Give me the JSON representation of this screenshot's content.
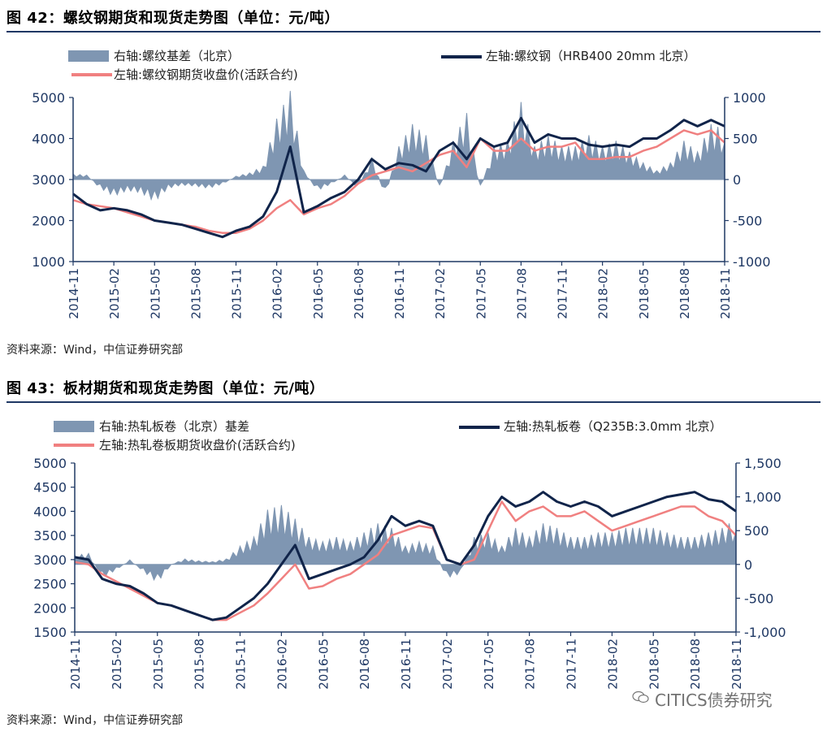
{
  "charts": [
    {
      "title": "图 42：螺纹钢期货和现货走势图（单位：元/吨）",
      "source": "资料来源：Wind，中信证券研究部"
    },
    {
      "title": "图 43：板材期货和现货走势图（单位：元/吨）",
      "source": "资料来源：Wind，中信证券研究部"
    }
  ],
  "watermark": "CITICS债券研究",
  "colors": {
    "basis": "#7f96b2",
    "spot": "#10244a",
    "futures": "#f08080",
    "axis": "#1f3864",
    "tick_text": "#1f3864"
  },
  "chart_data": [
    {
      "type": "line",
      "title": "",
      "x_ticks": [
        "2014-11",
        "2015-02",
        "2015-05",
        "2015-08",
        "2015-11",
        "2016-02",
        "2016-05",
        "2016-08",
        "2016-11",
        "2017-02",
        "2017-05",
        "2017-08",
        "2017-11",
        "2018-02",
        "2018-05",
        "2018-08",
        "2018-11"
      ],
      "ylim_left": [
        1000,
        5000
      ],
      "yticks_left": [
        "1000",
        "2000",
        "3000",
        "4000",
        "5000"
      ],
      "ylim_right": [
        -1000,
        1000
      ],
      "yticks_right": [
        "-1000",
        "-500",
        "0",
        "500",
        "1000"
      ],
      "legend": {
        "basis": "右轴:螺纹基差（北京）",
        "spot": "左轴:螺纹钢（HRB400 20mm 北京）",
        "futures": "左轴:螺纹钢期货收盘价(活跃合约)"
      },
      "series": [
        {
          "name": "左轴:螺纹钢（HRB400 20mm 北京）",
          "axis": "left",
          "x": [
            0,
            1,
            2,
            3,
            4,
            5,
            6,
            7,
            8,
            9,
            10,
            11,
            12,
            13,
            14,
            15,
            16,
            17,
            18,
            19,
            20,
            21,
            22,
            23,
            24,
            25,
            26,
            27,
            28,
            29,
            30,
            31,
            32,
            33,
            34,
            35,
            36,
            37,
            38,
            39,
            40,
            41,
            42,
            43,
            44,
            45,
            46,
            47,
            48
          ],
          "values": [
            2650,
            2400,
            2250,
            2300,
            2250,
            2150,
            2000,
            1950,
            1900,
            1800,
            1700,
            1600,
            1750,
            1850,
            2100,
            2700,
            3800,
            2200,
            2350,
            2550,
            2700,
            3000,
            3500,
            3250,
            3400,
            3350,
            3200,
            3700,
            3900,
            3500,
            4000,
            3800,
            3900,
            4500,
            3900,
            4100,
            4000,
            4000,
            3850,
            3800,
            3850,
            3800,
            4000,
            4000,
            4200,
            4450,
            4300,
            4450,
            4300
          ]
        },
        {
          "name": "左轴:螺纹钢期货收盘价(活跃合约)",
          "axis": "left",
          "x": [
            0,
            1,
            2,
            3,
            4,
            5,
            6,
            7,
            8,
            9,
            10,
            11,
            12,
            13,
            14,
            15,
            16,
            17,
            18,
            19,
            20,
            21,
            22,
            23,
            24,
            25,
            26,
            27,
            28,
            29,
            30,
            31,
            32,
            33,
            34,
            35,
            36,
            37,
            38,
            39,
            40,
            41,
            42,
            43,
            44,
            45,
            46,
            47,
            48
          ],
          "values": [
            2500,
            2400,
            2350,
            2300,
            2200,
            2100,
            2000,
            1950,
            1900,
            1850,
            1750,
            1700,
            1700,
            1800,
            2000,
            2300,
            2500,
            2150,
            2300,
            2400,
            2600,
            2900,
            3100,
            3200,
            3300,
            3200,
            3400,
            3600,
            3700,
            3300,
            4000,
            3700,
            3700,
            4000,
            3700,
            3800,
            3800,
            3900,
            3500,
            3500,
            3550,
            3550,
            3700,
            3800,
            4000,
            4200,
            4100,
            4200,
            3900
          ]
        },
        {
          "name": "右轴:螺纹基差（北京）",
          "axis": "right",
          "type": "area",
          "x": [
            0,
            1,
            2,
            3,
            4,
            5,
            6,
            7,
            8,
            9,
            10,
            11,
            12,
            13,
            14,
            15,
            16,
            17,
            18,
            19,
            20,
            21,
            22,
            23,
            24,
            25,
            26,
            27,
            28,
            29,
            30,
            31,
            32,
            33,
            34,
            35,
            36,
            37,
            38,
            39,
            40,
            41,
            42,
            43,
            44,
            45,
            46,
            47,
            48
          ],
          "values": [
            50,
            40,
            -80,
            -150,
            -100,
            -120,
            -200,
            -80,
            -50,
            -60,
            -80,
            -40,
            30,
            60,
            120,
            550,
            800,
            80,
            -100,
            -40,
            40,
            -80,
            200,
            -150,
            300,
            500,
            400,
            -100,
            350,
            600,
            -100,
            300,
            350,
            700,
            300,
            400,
            300,
            300,
            400,
            300,
            350,
            250,
            150,
            80,
            150,
            350,
            250,
            500,
            450
          ]
        }
      ]
    },
    {
      "type": "line",
      "title": "",
      "x_ticks": [
        "2014-11",
        "2015-02",
        "2015-05",
        "2015-08",
        "2015-11",
        "2016-02",
        "2016-05",
        "2016-08",
        "2016-11",
        "2017-02",
        "2017-05",
        "2017-08",
        "2017-11",
        "2018-02",
        "2018-05",
        "2018-08",
        "2018-11"
      ],
      "ylim_left": [
        1500,
        5000
      ],
      "yticks_left": [
        "1500",
        "2000",
        "2500",
        "3000",
        "3500",
        "4000",
        "4500",
        "5000"
      ],
      "ylim_right": [
        -1000,
        1500
      ],
      "yticks_right": [
        "-1,000",
        "-500",
        "0",
        "500",
        "1,000",
        "1,500"
      ],
      "legend": {
        "basis": "右轴:热轧板卷（北京）基差",
        "spot": "左轴:热轧板卷（Q235B:3.0mm 北京）",
        "futures": "左轴:热轧卷板期货收盘价(活跃合约)"
      },
      "series": [
        {
          "name": "左轴:热轧板卷（Q235B:3.0mm 北京）",
          "axis": "left",
          "x": [
            0,
            1,
            2,
            3,
            4,
            5,
            6,
            7,
            8,
            9,
            10,
            11,
            12,
            13,
            14,
            15,
            16,
            17,
            18,
            19,
            20,
            21,
            22,
            23,
            24,
            25,
            26,
            27,
            28,
            29,
            30,
            31,
            32,
            33,
            34,
            35,
            36,
            37,
            38,
            39,
            40,
            41,
            42,
            43,
            44,
            45,
            46,
            47,
            48
          ],
          "values": [
            3050,
            3000,
            2600,
            2500,
            2450,
            2300,
            2100,
            2050,
            1950,
            1850,
            1750,
            1800,
            2000,
            2200,
            2500,
            2900,
            3300,
            2600,
            2700,
            2800,
            2900,
            3050,
            3400,
            3900,
            3700,
            3800,
            3700,
            3000,
            2900,
            3300,
            3900,
            4300,
            4100,
            4200,
            4400,
            4200,
            4100,
            4200,
            4100,
            3900,
            4000,
            4100,
            4200,
            4300,
            4350,
            4400,
            4250,
            4200,
            4000
          ]
        },
        {
          "name": "左轴:热轧卷板期货收盘价(活跃合约)",
          "axis": "left",
          "x": [
            0,
            1,
            2,
            3,
            4,
            5,
            6,
            7,
            8,
            9,
            10,
            11,
            12,
            13,
            14,
            15,
            16,
            17,
            18,
            19,
            20,
            21,
            22,
            23,
            24,
            25,
            26,
            27,
            28,
            29,
            30,
            31,
            32,
            33,
            34,
            35,
            36,
            37,
            38,
            39,
            40,
            41,
            42,
            43,
            44,
            45,
            46,
            47,
            48
          ],
          "values": [
            2950,
            2900,
            2700,
            2550,
            2400,
            2250,
            2100,
            2050,
            1950,
            1850,
            1750,
            1750,
            1900,
            2050,
            2300,
            2600,
            2900,
            2400,
            2450,
            2600,
            2700,
            2900,
            3100,
            3500,
            3600,
            3700,
            3650,
            3000,
            2900,
            3000,
            3600,
            4200,
            3800,
            4000,
            4100,
            3900,
            3900,
            4000,
            3800,
            3600,
            3700,
            3800,
            3900,
            4000,
            4100,
            4100,
            3900,
            3800,
            3500
          ]
        },
        {
          "name": "右轴:热轧板卷（北京）基差",
          "axis": "right",
          "type": "area",
          "x": [
            0,
            1,
            2,
            3,
            4,
            5,
            6,
            7,
            8,
            9,
            10,
            11,
            12,
            13,
            14,
            15,
            16,
            17,
            18,
            19,
            20,
            21,
            22,
            23,
            24,
            25,
            26,
            27,
            28,
            29,
            30,
            31,
            32,
            33,
            34,
            35,
            36,
            37,
            38,
            39,
            40,
            41,
            42,
            43,
            44,
            45,
            46,
            47,
            48
          ],
          "values": [
            100,
            120,
            -150,
            -60,
            50,
            -80,
            -200,
            0,
            60,
            40,
            30,
            60,
            200,
            300,
            600,
            650,
            500,
            300,
            250,
            300,
            250,
            350,
            450,
            400,
            200,
            250,
            200,
            -150,
            -100,
            300,
            350,
            200,
            400,
            300,
            450,
            400,
            300,
            300,
            350,
            350,
            400,
            400,
            400,
            350,
            300,
            300,
            350,
            400,
            500
          ]
        }
      ]
    }
  ]
}
